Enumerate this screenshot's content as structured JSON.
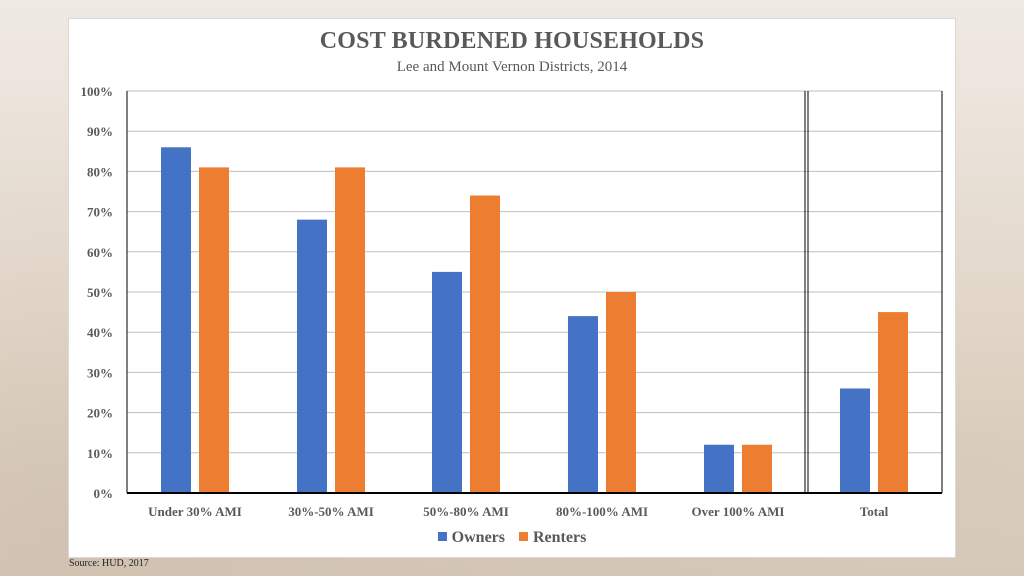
{
  "colors": {
    "owners": "#4472C4",
    "renters": "#ED7D31",
    "grid": "#bfbfbf",
    "axis": "#000000",
    "text": "#595959"
  },
  "chart_data": {
    "type": "bar",
    "title": "COST BURDENED HOUSEHOLDS",
    "subtitle": "Lee and Mount Vernon Districts, 2014",
    "categories": [
      "Under 30% AMI",
      "30%-50% AMI",
      "50%-80% AMI",
      "80%-100% AMI",
      "Over 100% AMI",
      "Total"
    ],
    "series": [
      {
        "name": "Owners",
        "values": [
          86,
          68,
          55,
          44,
          12,
          26
        ]
      },
      {
        "name": "Renters",
        "values": [
          81,
          81,
          74,
          50,
          12,
          45
        ]
      }
    ],
    "ylim": [
      0,
      100
    ],
    "yticks": [
      "0%",
      "10%",
      "20%",
      "30%",
      "40%",
      "50%",
      "60%",
      "70%",
      "80%",
      "90%",
      "100%"
    ],
    "grid": true,
    "legend": "bottom"
  },
  "source": "Source:  HUD, 2017"
}
